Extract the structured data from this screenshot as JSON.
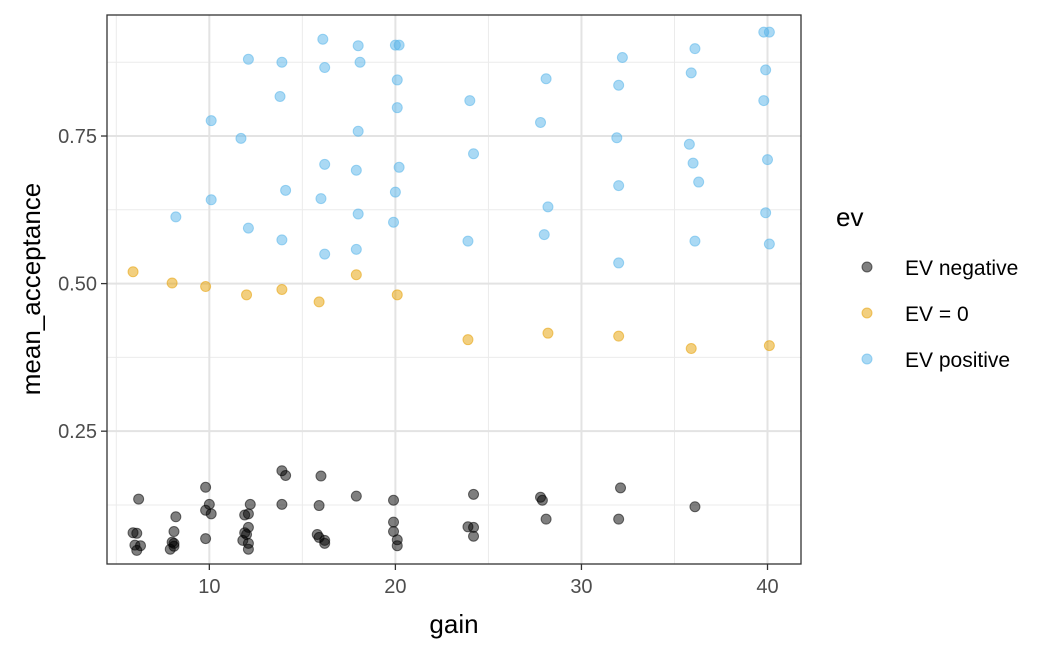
{
  "chart_data": {
    "type": "scatter",
    "xlabel": "gain",
    "ylabel": "mean_acceptance",
    "xlim": [
      4.5,
      41.8
    ],
    "ylim": [
      0.025,
      0.955
    ],
    "x_ticks": [
      10,
      20,
      30,
      40
    ],
    "x_tick_labels": [
      "10",
      "20",
      "30",
      "40"
    ],
    "y_ticks": [
      0.25,
      0.5,
      0.75
    ],
    "y_tick_labels": [
      "0.25",
      "0.50",
      "0.75"
    ],
    "grid": true,
    "legend": {
      "title": "ev",
      "position": "right",
      "entries": [
        "EV negative",
        "EV = 0",
        "EV positive"
      ]
    },
    "series": [
      {
        "name": "EV negative",
        "color": "#000000",
        "points": [
          [
            5.9,
            0.078
          ],
          [
            6.1,
            0.077
          ],
          [
            6.0,
            0.057
          ],
          [
            6.3,
            0.056
          ],
          [
            6.1,
            0.048
          ],
          [
            6.2,
            0.135
          ],
          [
            8.1,
            0.08
          ],
          [
            8.2,
            0.105
          ],
          [
            8.0,
            0.062
          ],
          [
            8.1,
            0.06
          ],
          [
            7.9,
            0.05
          ],
          [
            8.1,
            0.055
          ],
          [
            9.8,
            0.155
          ],
          [
            9.8,
            0.116
          ],
          [
            10.0,
            0.126
          ],
          [
            10.1,
            0.11
          ],
          [
            9.8,
            0.068
          ],
          [
            12.2,
            0.126
          ],
          [
            11.9,
            0.108
          ],
          [
            12.1,
            0.11
          ],
          [
            12.1,
            0.087
          ],
          [
            11.9,
            0.078
          ],
          [
            12.0,
            0.075
          ],
          [
            11.8,
            0.065
          ],
          [
            12.1,
            0.06
          ],
          [
            12.1,
            0.05
          ],
          [
            13.9,
            0.183
          ],
          [
            14.1,
            0.175
          ],
          [
            13.9,
            0.126
          ],
          [
            16.0,
            0.174
          ],
          [
            15.9,
            0.124
          ],
          [
            15.8,
            0.075
          ],
          [
            15.9,
            0.07
          ],
          [
            16.2,
            0.065
          ],
          [
            16.2,
            0.06
          ],
          [
            17.9,
            0.14
          ],
          [
            19.9,
            0.133
          ],
          [
            19.9,
            0.096
          ],
          [
            19.9,
            0.08
          ],
          [
            20.1,
            0.066
          ],
          [
            20.1,
            0.056
          ],
          [
            23.9,
            0.088
          ],
          [
            24.2,
            0.143
          ],
          [
            24.2,
            0.087
          ],
          [
            24.2,
            0.072
          ],
          [
            27.8,
            0.138
          ],
          [
            27.9,
            0.133
          ],
          [
            28.1,
            0.101
          ],
          [
            32.1,
            0.154
          ],
          [
            32.0,
            0.101
          ],
          [
            36.1,
            0.122
          ]
        ]
      },
      {
        "name": "EV = 0",
        "color": "#e69f00",
        "points": [
          [
            5.9,
            0.52
          ],
          [
            8.0,
            0.501
          ],
          [
            9.8,
            0.495
          ],
          [
            12.0,
            0.481
          ],
          [
            13.9,
            0.49
          ],
          [
            15.9,
            0.469
          ],
          [
            17.9,
            0.515
          ],
          [
            20.1,
            0.481
          ],
          [
            23.9,
            0.405
          ],
          [
            28.2,
            0.416
          ],
          [
            32.0,
            0.411
          ],
          [
            35.9,
            0.39
          ],
          [
            40.1,
            0.395
          ]
        ]
      },
      {
        "name": "EV positive",
        "color": "#56b4e9",
        "points": [
          [
            8.2,
            0.613
          ],
          [
            10.1,
            0.776
          ],
          [
            10.1,
            0.642
          ],
          [
            11.7,
            0.746
          ],
          [
            12.1,
            0.88
          ],
          [
            12.1,
            0.594
          ],
          [
            13.9,
            0.875
          ],
          [
            13.8,
            0.817
          ],
          [
            14.1,
            0.658
          ],
          [
            13.9,
            0.574
          ],
          [
            16.1,
            0.914
          ],
          [
            16.2,
            0.866
          ],
          [
            16.2,
            0.702
          ],
          [
            16.0,
            0.644
          ],
          [
            16.2,
            0.55
          ],
          [
            18.0,
            0.903
          ],
          [
            18.1,
            0.875
          ],
          [
            18.0,
            0.758
          ],
          [
            17.9,
            0.692
          ],
          [
            18.0,
            0.618
          ],
          [
            17.9,
            0.558
          ],
          [
            20.0,
            0.904
          ],
          [
            20.2,
            0.904
          ],
          [
            20.1,
            0.845
          ],
          [
            20.1,
            0.798
          ],
          [
            20.2,
            0.697
          ],
          [
            20.0,
            0.655
          ],
          [
            19.9,
            0.604
          ],
          [
            24.0,
            0.81
          ],
          [
            24.2,
            0.72
          ],
          [
            23.9,
            0.572
          ],
          [
            28.1,
            0.847
          ],
          [
            27.8,
            0.773
          ],
          [
            28.2,
            0.63
          ],
          [
            28.0,
            0.583
          ],
          [
            32.2,
            0.883
          ],
          [
            32.0,
            0.836
          ],
          [
            31.9,
            0.747
          ],
          [
            32.0,
            0.666
          ],
          [
            32.0,
            0.535
          ],
          [
            36.1,
            0.898
          ],
          [
            35.9,
            0.857
          ],
          [
            35.8,
            0.736
          ],
          [
            36.0,
            0.704
          ],
          [
            36.3,
            0.672
          ],
          [
            36.1,
            0.572
          ],
          [
            39.8,
            0.926
          ],
          [
            40.1,
            0.926
          ],
          [
            39.9,
            0.862
          ],
          [
            39.8,
            0.81
          ],
          [
            40.0,
            0.71
          ],
          [
            39.9,
            0.62
          ],
          [
            40.1,
            0.567
          ]
        ]
      }
    ]
  }
}
